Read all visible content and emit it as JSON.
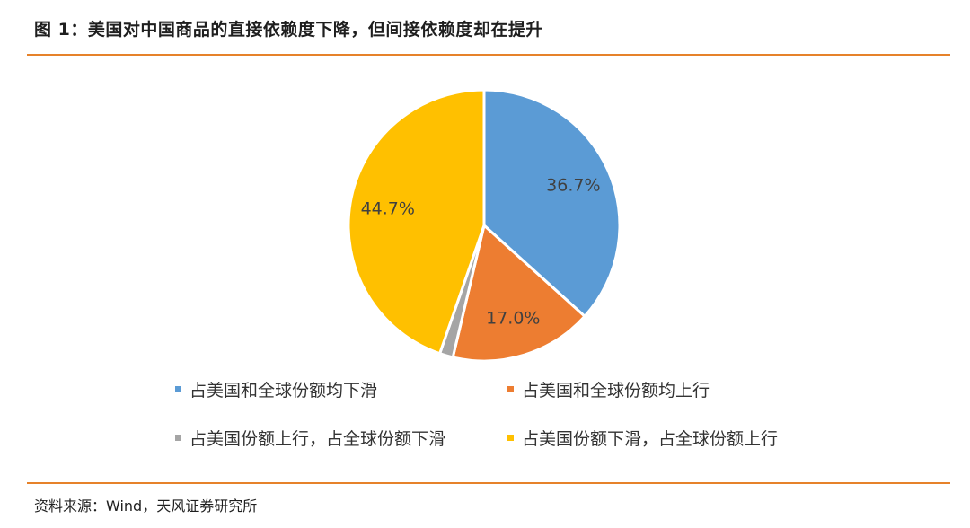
{
  "header": {
    "title": "图 1：美国对中国商品的直接依赖度下降，但间接依赖度却在提升"
  },
  "footer": {
    "source": "资料来源：Wind，天风证券研究所"
  },
  "colors": {
    "rule": "#e6822a"
  },
  "chart_data": {
    "type": "pie",
    "title": "",
    "series": [
      {
        "name": "占美国和全球份额均下滑",
        "value": 36.7,
        "label": "36.7%",
        "color": "#5b9bd5"
      },
      {
        "name": "占美国和全球份额均上行",
        "value": 17.0,
        "label": "17.0%",
        "color": "#ed7d31"
      },
      {
        "name": "占美国份额上行，占全球份额下滑",
        "value": 1.6,
        "label": "1.6%",
        "color": "#a5a5a5"
      },
      {
        "name": "占美国份额下滑，占全球份额上行",
        "value": 44.7,
        "label": "44.7%",
        "color": "#ffc000"
      }
    ],
    "legend_position": "bottom"
  }
}
